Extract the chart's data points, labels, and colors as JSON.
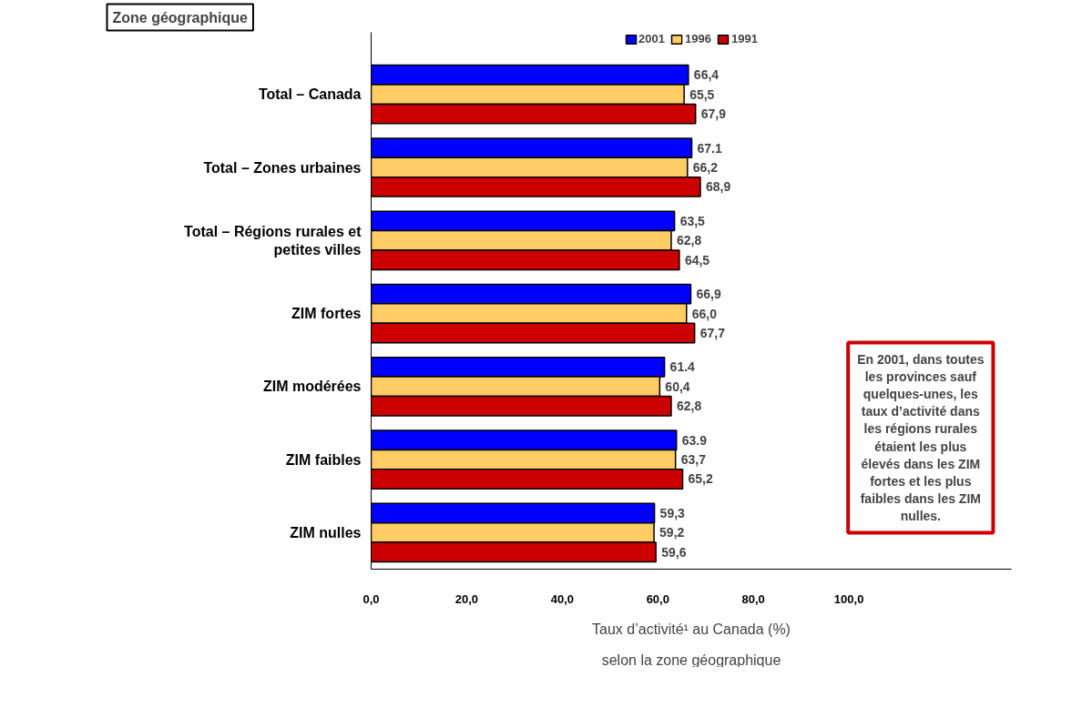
{
  "chart_data": {
    "type": "bar",
    "orientation": "horizontal",
    "title": "Taux d’activité¹ au Canada (%)",
    "subtitle": "selon la zone géographique",
    "ylabel": "Zone géographique",
    "categories": [
      "Total – Canada",
      "Total – Zones urbaines",
      "Total – Régions rurales et petites villes",
      "ZIM fortes",
      "ZIM modérées",
      "ZIM faibles",
      "ZIM nulles"
    ],
    "series": [
      {
        "name": "2001",
        "color": "#0000ff",
        "values": [
          66.4,
          67.1,
          63.5,
          66.9,
          61.4,
          63.9,
          59.3
        ],
        "value_labels": [
          "66,4",
          "67.1",
          "63,5",
          "66,9",
          "61.4",
          "63.9",
          "59,3"
        ]
      },
      {
        "name": "1996",
        "color": "#ffcc66",
        "values": [
          65.5,
          66.2,
          62.8,
          66.0,
          60.4,
          63.7,
          59.2
        ],
        "value_labels": [
          "65,5",
          "66,2",
          "62,8",
          "66,0",
          "60,4",
          "63,7",
          "59,2"
        ]
      },
      {
        "name": "1991",
        "color": "#cc0000",
        "values": [
          67.9,
          68.9,
          64.5,
          67.7,
          62.8,
          65.2,
          59.6
        ],
        "value_labels": [
          "67,9",
          "68,9",
          "64,5",
          "67,7",
          "62,8",
          "65,2",
          "59,6"
        ]
      }
    ],
    "xlim": [
      0,
      134
    ],
    "xticks": [
      {
        "value": 0,
        "label": "0,0"
      },
      {
        "value": 20,
        "label": "20,0"
      },
      {
        "value": 40,
        "label": "40,0"
      },
      {
        "value": 60,
        "label": "60,0"
      },
      {
        "value": 80,
        "label": "80,0"
      },
      {
        "value": 100,
        "label": "100,0"
      }
    ],
    "grid": false,
    "legend": "top",
    "annotations": [
      "En 2001, dans toutes les provinces sauf quelques-unes, les taux d’activité dans les régions rurales étaient les plus élevés dans les ZIM fortes et les plus faibles dans les ZIM nulles."
    ]
  }
}
